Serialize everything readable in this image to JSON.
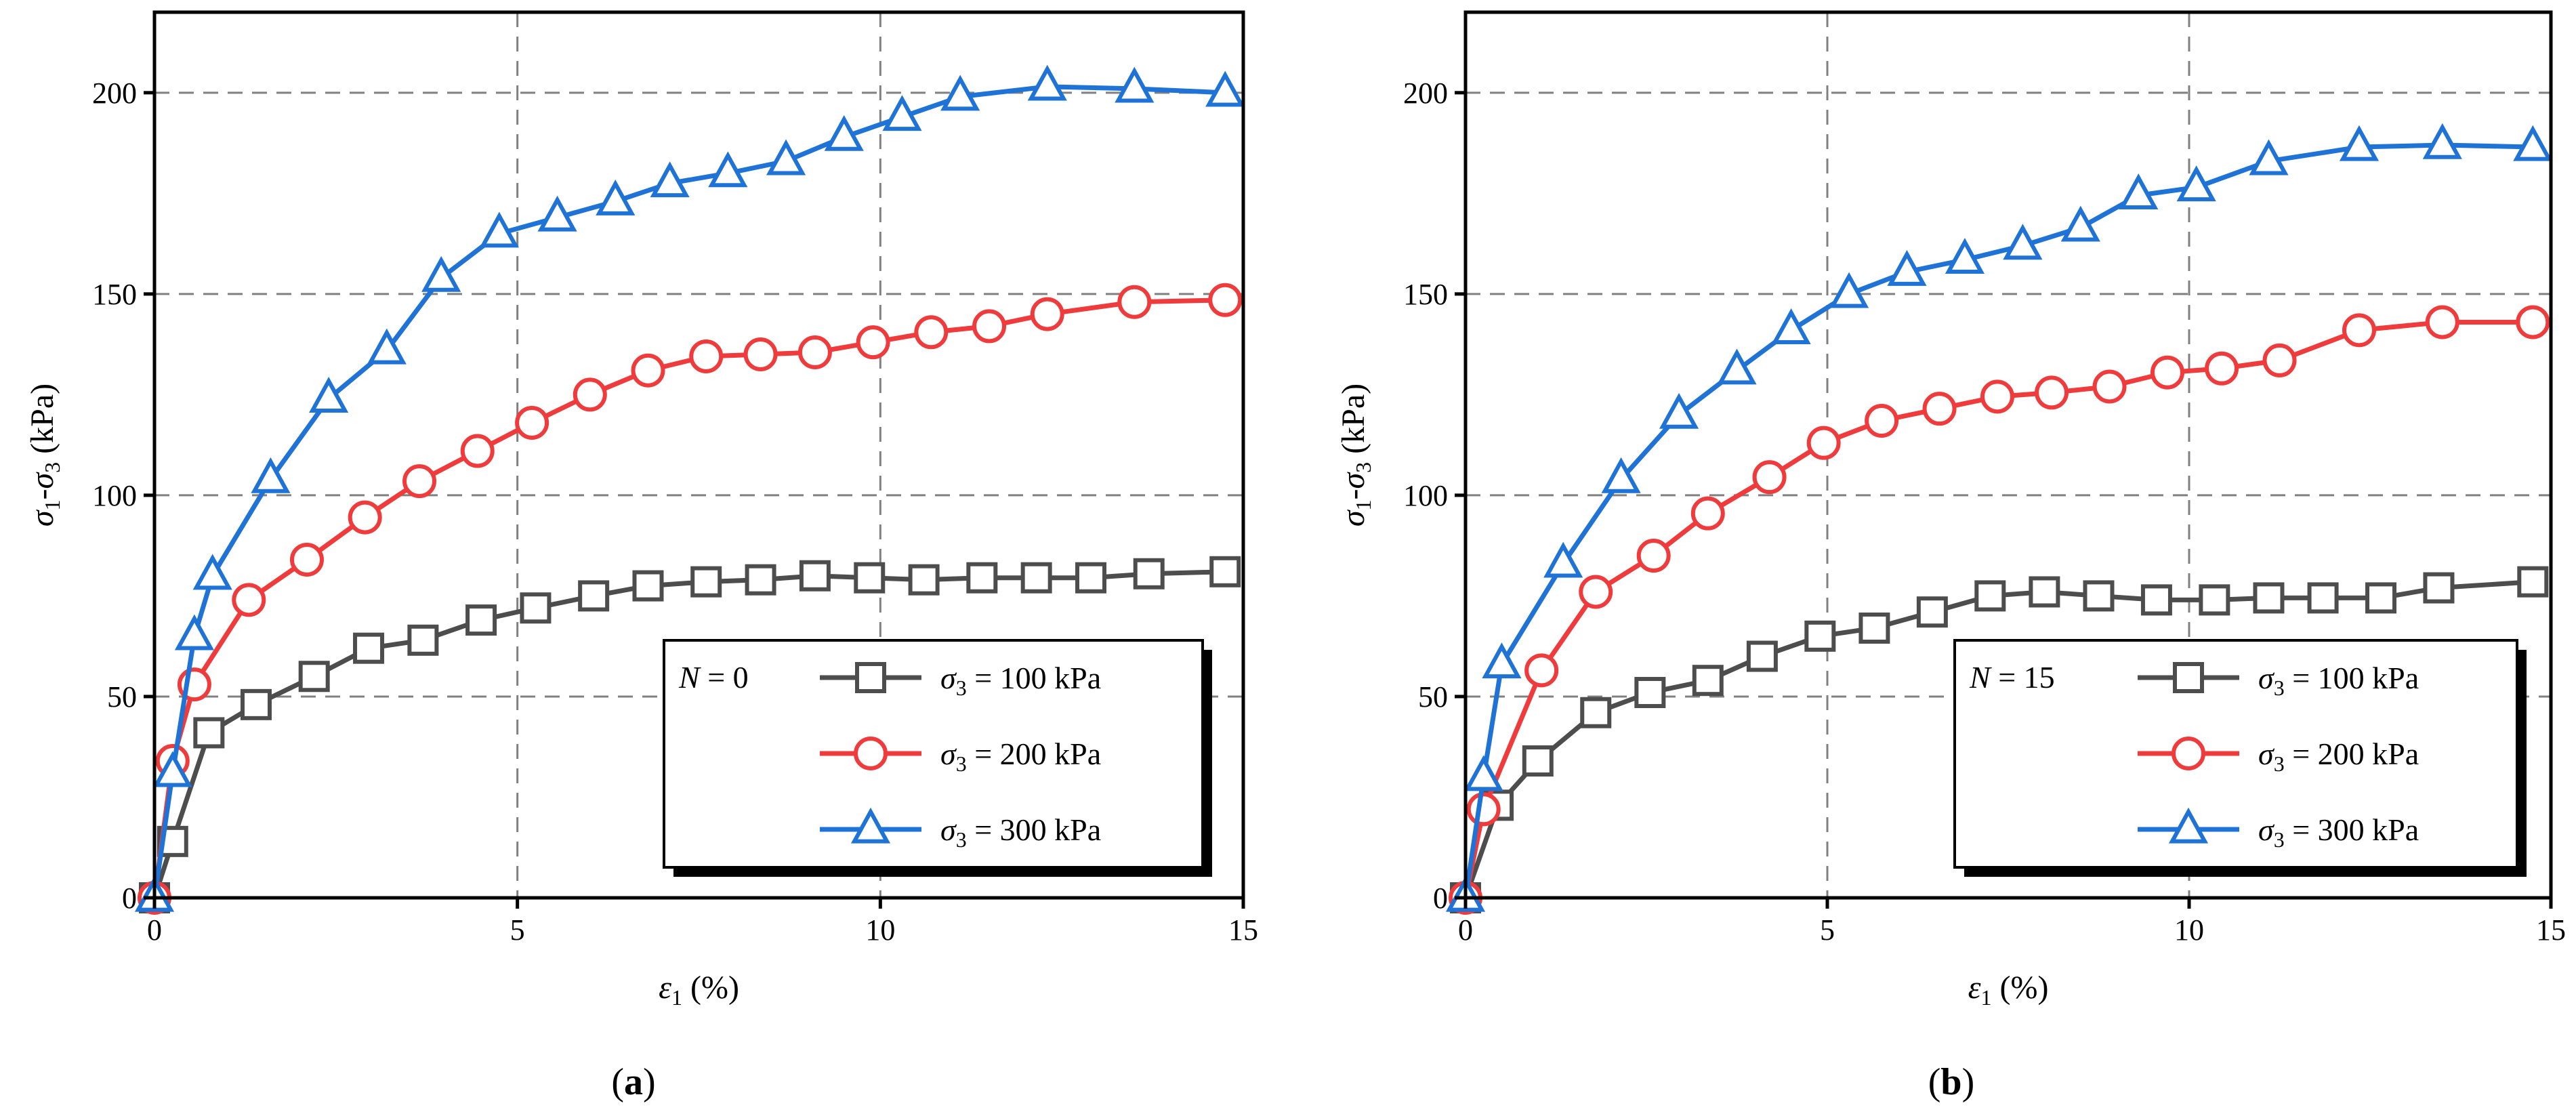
{
  "chart_data": [
    {
      "type": "line",
      "panel_label": "a",
      "annotation_var": "N",
      "annotation_eq": " = 0",
      "xlabel_sym": "ε",
      "xlabel_sub": "1",
      "xlabel_unit": " (%)",
      "ylabel_sym1": "σ",
      "ylabel_sub1": "1",
      "ylabel_dash": "-",
      "ylabel_sym3": "σ",
      "ylabel_sub3": "3",
      "ylabel_unit": " (kPa)",
      "xlim": [
        0,
        15
      ],
      "ylim": [
        0,
        220
      ],
      "xticks": [
        0,
        5,
        10,
        15
      ],
      "yticks": [
        0,
        50,
        100,
        150,
        200
      ],
      "grid": true,
      "legend_position": "bottom-right",
      "series": [
        {
          "name": "σ3 = 100 kPa",
          "legend_sym": "σ",
          "legend_sub": "3",
          "legend_rest": " = 100 kPa",
          "color": "#4d4d4d",
          "marker": "square",
          "x": [
            0,
            0.25,
            0.75,
            1.4,
            2.2,
            2.95,
            3.7,
            4.5,
            5.25,
            6.05,
            6.8,
            7.6,
            8.35,
            9.1,
            9.85,
            10.6,
            11.4,
            12.15,
            12.9,
            13.7,
            14.75
          ],
          "y": [
            0,
            14,
            41,
            48,
            55,
            62,
            64,
            69,
            72,
            75,
            77.5,
            78.5,
            79,
            80,
            79.5,
            79,
            79.5,
            79.5,
            79.5,
            80.5,
            81
          ]
        },
        {
          "name": "σ3 = 200 kPa",
          "legend_sym": "σ",
          "legend_sub": "3",
          "legend_rest": " = 200 kPa",
          "color": "#ef3b3b",
          "marker": "circle",
          "x": [
            0,
            0.25,
            0.55,
            1.3,
            2.1,
            2.9,
            3.65,
            4.45,
            5.2,
            6.0,
            6.8,
            7.6,
            8.35,
            9.1,
            9.9,
            10.7,
            11.5,
            12.3,
            13.5,
            14.75
          ],
          "y": [
            0,
            34,
            53,
            74,
            84,
            94.5,
            103.5,
            111,
            118,
            125,
            131,
            134.5,
            135,
            135.5,
            138,
            140.5,
            142,
            145,
            148,
            148.5
          ]
        },
        {
          "name": "σ3 = 300 kPa",
          "legend_sym": "σ",
          "legend_sub": "3",
          "legend_rest": " = 300 kPa",
          "color": "#1f73d6",
          "marker": "triangle",
          "x": [
            0,
            0.25,
            0.55,
            0.8,
            1.6,
            2.4,
            3.2,
            3.95,
            4.75,
            5.55,
            6.35,
            7.1,
            7.9,
            8.7,
            9.5,
            10.3,
            11.1,
            12.3,
            13.5,
            14.75
          ],
          "y": [
            0,
            31,
            65,
            80,
            104,
            124,
            136,
            154,
            165,
            169,
            173,
            177.5,
            180,
            183,
            189,
            194,
            199,
            201.5,
            201,
            200
          ]
        }
      ]
    },
    {
      "type": "line",
      "panel_label": "b",
      "annotation_var": "N",
      "annotation_eq": " = 15",
      "xlabel_sym": "ε",
      "xlabel_sub": "1",
      "xlabel_unit": " (%)",
      "ylabel_sym1": "σ",
      "ylabel_sub1": "1",
      "ylabel_dash": "-",
      "ylabel_sym3": "σ",
      "ylabel_sub3": "3",
      "ylabel_unit": " (kPa)",
      "xlim": [
        0,
        15
      ],
      "ylim": [
        0,
        220
      ],
      "xticks": [
        0,
        5,
        10,
        15
      ],
      "yticks": [
        0,
        50,
        100,
        150,
        200
      ],
      "grid": true,
      "legend_position": "bottom-right",
      "series": [
        {
          "name": "σ3 = 100 kPa",
          "legend_sym": "σ",
          "legend_sub": "3",
          "legend_rest": " = 100 kPa",
          "color": "#4d4d4d",
          "marker": "square",
          "x": [
            0,
            0.45,
            1.0,
            1.8,
            2.55,
            3.35,
            4.1,
            4.9,
            5.65,
            6.45,
            7.25,
            8.0,
            8.75,
            9.55,
            10.35,
            11.1,
            11.85,
            12.65,
            13.45,
            14.75
          ],
          "y": [
            0,
            23,
            34,
            46,
            51,
            54,
            60,
            65,
            67,
            71,
            75,
            76,
            75,
            74,
            74,
            74.5,
            74.5,
            74.5,
            77,
            78.5
          ]
        },
        {
          "name": "σ3 = 200 kPa",
          "legend_sym": "σ",
          "legend_sub": "3",
          "legend_rest": " = 200 kPa",
          "color": "#ef3b3b",
          "marker": "circle",
          "x": [
            0,
            0.25,
            1.05,
            1.8,
            2.6,
            3.35,
            4.2,
            4.95,
            5.75,
            6.55,
            7.35,
            8.1,
            8.9,
            9.7,
            10.45,
            11.25,
            12.35,
            13.5,
            14.75
          ],
          "y": [
            0,
            22,
            56.5,
            76,
            85,
            95.5,
            104.5,
            113,
            118.5,
            121.5,
            124.5,
            125.5,
            127,
            130.5,
            131.5,
            133.5,
            141,
            143,
            143
          ]
        },
        {
          "name": "σ3 = 300 kPa",
          "legend_sym": "σ",
          "legend_sub": "3",
          "legend_rest": " = 300 kPa",
          "color": "#1f73d6",
          "marker": "triangle",
          "x": [
            0,
            0.25,
            0.5,
            1.35,
            2.15,
            2.95,
            3.75,
            4.5,
            5.3,
            6.1,
            6.9,
            7.7,
            8.5,
            9.3,
            10.1,
            11.1,
            12.35,
            13.5,
            14.75
          ],
          "y": [
            0,
            30,
            58,
            83,
            104,
            120,
            131,
            141,
            150,
            155.5,
            158.5,
            162,
            166.5,
            174.5,
            176.5,
            183,
            186.5,
            187,
            186.5
          ]
        }
      ]
    }
  ]
}
